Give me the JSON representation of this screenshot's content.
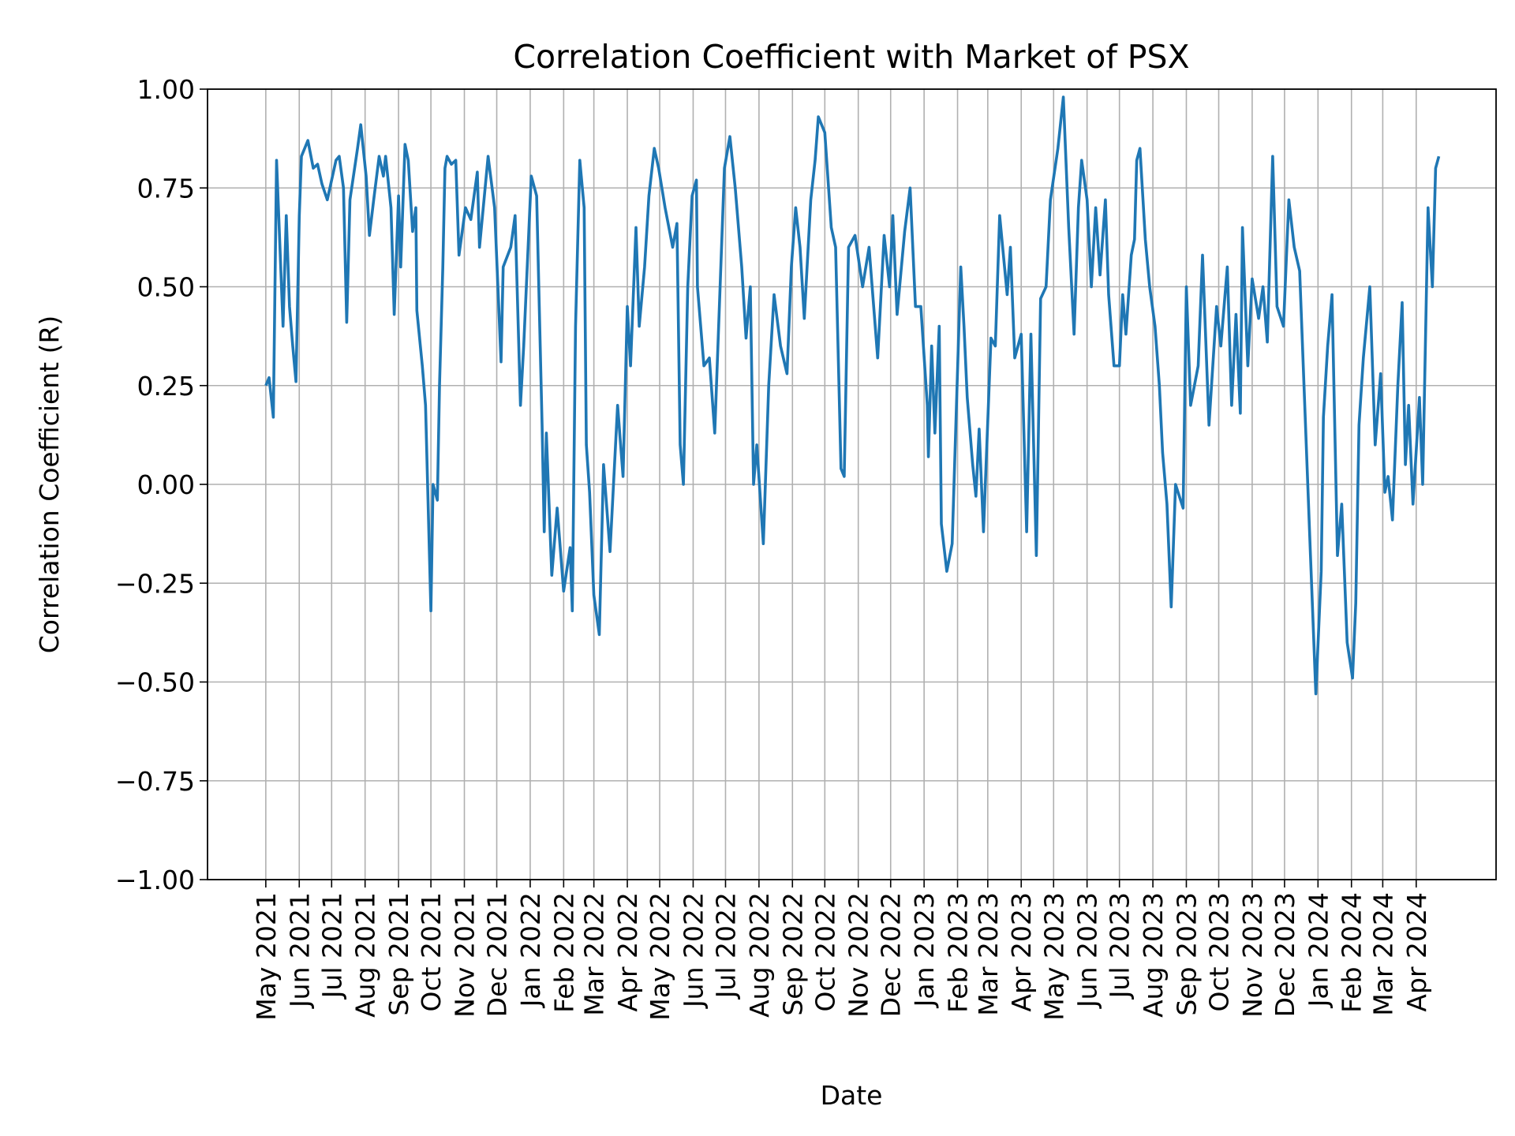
{
  "chart_data": {
    "type": "line",
    "title": "Correlation Coefficient with Market of PSX",
    "xlabel": "Date",
    "ylabel": "Correlation Coefficient (R)",
    "xlim": [
      "2021-03-08",
      "2024-06-14"
    ],
    "ylim": [
      -1.0,
      1.0
    ],
    "grid": true,
    "line_color": "#1f77b4",
    "yticks": [
      -1.0,
      -0.75,
      -0.5,
      -0.25,
      0.0,
      0.25,
      0.5,
      0.75,
      1.0
    ],
    "ytick_labels": [
      "−1.00",
      "−0.75",
      "−0.50",
      "−0.25",
      "0.00",
      "0.25",
      "0.50",
      "0.75",
      "1.00"
    ],
    "xticks": [
      "2021-05-01",
      "2021-06-01",
      "2021-07-01",
      "2021-08-01",
      "2021-09-01",
      "2021-10-01",
      "2021-11-01",
      "2021-12-01",
      "2022-01-01",
      "2022-02-01",
      "2022-03-01",
      "2022-04-01",
      "2022-05-01",
      "2022-06-01",
      "2022-07-01",
      "2022-08-01",
      "2022-09-01",
      "2022-10-01",
      "2022-11-01",
      "2022-12-01",
      "2023-01-01",
      "2023-02-01",
      "2023-03-01",
      "2023-04-01",
      "2023-05-01",
      "2023-06-01",
      "2023-07-01",
      "2023-08-01",
      "2023-09-01",
      "2023-10-01",
      "2023-11-01",
      "2023-12-01",
      "2024-01-01",
      "2024-02-01",
      "2024-03-01",
      "2024-04-01"
    ],
    "xtick_labels": [
      "May 2021",
      "Jun 2021",
      "Jul 2021",
      "Aug 2021",
      "Sep 2021",
      "Oct 2021",
      "Nov 2021",
      "Dec 2021",
      "Jan 2022",
      "Feb 2022",
      "Mar 2022",
      "Apr 2022",
      "May 2022",
      "Jun 2022",
      "Jul 2022",
      "Aug 2022",
      "Sep 2022",
      "Oct 2022",
      "Nov 2022",
      "Dec 2022",
      "Jan 2023",
      "Feb 2023",
      "Mar 2023",
      "Apr 2023",
      "May 2023",
      "Jun 2023",
      "Jul 2023",
      "Aug 2023",
      "Sep 2023",
      "Oct 2023",
      "Nov 2023",
      "Dec 2023",
      "Jan 2024",
      "Feb 2024",
      "Mar 2024",
      "Apr 2024"
    ],
    "points": [
      [
        "2021-05-01",
        0.25
      ],
      [
        "2021-05-04",
        0.27
      ],
      [
        "2021-05-08",
        0.17
      ],
      [
        "2021-05-11",
        0.82
      ],
      [
        "2021-05-17",
        0.4
      ],
      [
        "2021-05-20",
        0.68
      ],
      [
        "2021-05-23",
        0.45
      ],
      [
        "2021-05-26",
        0.35
      ],
      [
        "2021-05-29",
        0.26
      ],
      [
        "2021-06-01",
        0.68
      ],
      [
        "2021-06-03",
        0.83
      ],
      [
        "2021-06-09",
        0.87
      ],
      [
        "2021-06-14",
        0.8
      ],
      [
        "2021-06-18",
        0.81
      ],
      [
        "2021-06-22",
        0.76
      ],
      [
        "2021-06-27",
        0.72
      ],
      [
        "2021-07-05",
        0.82
      ],
      [
        "2021-07-08",
        0.83
      ],
      [
        "2021-07-12",
        0.75
      ],
      [
        "2021-07-15",
        0.41
      ],
      [
        "2021-07-18",
        0.72
      ],
      [
        "2021-07-25",
        0.85
      ],
      [
        "2021-07-28",
        0.91
      ],
      [
        "2021-08-02",
        0.78
      ],
      [
        "2021-08-05",
        0.63
      ],
      [
        "2021-08-09",
        0.72
      ],
      [
        "2021-08-14",
        0.83
      ],
      [
        "2021-08-18",
        0.78
      ],
      [
        "2021-08-20",
        0.83
      ],
      [
        "2021-08-25",
        0.7
      ],
      [
        "2021-08-28",
        0.43
      ],
      [
        "2021-09-01",
        0.73
      ],
      [
        "2021-09-03",
        0.55
      ],
      [
        "2021-09-07",
        0.86
      ],
      [
        "2021-09-10",
        0.82
      ],
      [
        "2021-09-14",
        0.64
      ],
      [
        "2021-09-17",
        0.7
      ],
      [
        "2021-09-18",
        0.44
      ],
      [
        "2021-09-23",
        0.3
      ],
      [
        "2021-09-26",
        0.2
      ],
      [
        "2021-10-01",
        -0.32
      ],
      [
        "2021-10-03",
        0.0
      ],
      [
        "2021-10-07",
        -0.04
      ],
      [
        "2021-10-09",
        0.25
      ],
      [
        "2021-10-12",
        0.55
      ],
      [
        "2021-10-14",
        0.8
      ],
      [
        "2021-10-16",
        0.83
      ],
      [
        "2021-10-20",
        0.81
      ],
      [
        "2021-10-24",
        0.82
      ],
      [
        "2021-10-27",
        0.58
      ],
      [
        "2021-11-02",
        0.7
      ],
      [
        "2021-11-07",
        0.67
      ],
      [
        "2021-11-13",
        0.79
      ],
      [
        "2021-11-15",
        0.6
      ],
      [
        "2021-11-23",
        0.83
      ],
      [
        "2021-11-29",
        0.7
      ],
      [
        "2021-12-05",
        0.31
      ],
      [
        "2021-12-07",
        0.55
      ],
      [
        "2021-12-14",
        0.6
      ],
      [
        "2021-12-18",
        0.68
      ],
      [
        "2021-12-23",
        0.2
      ],
      [
        "2021-12-26",
        0.35
      ],
      [
        "2022-01-02",
        0.78
      ],
      [
        "2022-01-07",
        0.73
      ],
      [
        "2022-01-12",
        0.15
      ],
      [
        "2022-01-14",
        -0.12
      ],
      [
        "2022-01-16",
        0.13
      ],
      [
        "2022-01-21",
        -0.23
      ],
      [
        "2022-01-26",
        -0.06
      ],
      [
        "2022-02-01",
        -0.27
      ],
      [
        "2022-02-07",
        -0.16
      ],
      [
        "2022-02-09",
        -0.32
      ],
      [
        "2022-02-12",
        0.4
      ],
      [
        "2022-02-16",
        0.82
      ],
      [
        "2022-02-20",
        0.7
      ],
      [
        "2022-02-22",
        0.1
      ],
      [
        "2022-02-25",
        -0.02
      ],
      [
        "2022-03-01",
        -0.28
      ],
      [
        "2022-03-06",
        -0.38
      ],
      [
        "2022-03-10",
        0.05
      ],
      [
        "2022-03-16",
        -0.17
      ],
      [
        "2022-03-23",
        0.2
      ],
      [
        "2022-03-28",
        0.02
      ],
      [
        "2022-04-01",
        0.45
      ],
      [
        "2022-04-04",
        0.3
      ],
      [
        "2022-04-09",
        0.65
      ],
      [
        "2022-04-12",
        0.4
      ],
      [
        "2022-04-17",
        0.55
      ],
      [
        "2022-04-21",
        0.73
      ],
      [
        "2022-04-26",
        0.85
      ],
      [
        "2022-04-30",
        0.8
      ],
      [
        "2022-05-06",
        0.7
      ],
      [
        "2022-05-13",
        0.6
      ],
      [
        "2022-05-17",
        0.66
      ],
      [
        "2022-05-20",
        0.1
      ],
      [
        "2022-05-23",
        0.0
      ],
      [
        "2022-05-27",
        0.5
      ],
      [
        "2022-05-31",
        0.73
      ],
      [
        "2022-06-04",
        0.77
      ],
      [
        "2022-06-05",
        0.5
      ],
      [
        "2022-06-11",
        0.3
      ],
      [
        "2022-06-16",
        0.32
      ],
      [
        "2022-06-21",
        0.13
      ],
      [
        "2022-06-26",
        0.5
      ],
      [
        "2022-06-30",
        0.8
      ],
      [
        "2022-07-05",
        0.88
      ],
      [
        "2022-07-10",
        0.75
      ],
      [
        "2022-07-16",
        0.55
      ],
      [
        "2022-07-20",
        0.37
      ],
      [
        "2022-07-24",
        0.5
      ],
      [
        "2022-07-27",
        0.0
      ],
      [
        "2022-07-30",
        0.1
      ],
      [
        "2022-08-05",
        -0.15
      ],
      [
        "2022-08-10",
        0.25
      ],
      [
        "2022-08-15",
        0.48
      ],
      [
        "2022-08-21",
        0.35
      ],
      [
        "2022-08-27",
        0.28
      ],
      [
        "2022-08-31",
        0.55
      ],
      [
        "2022-09-04",
        0.7
      ],
      [
        "2022-09-08",
        0.6
      ],
      [
        "2022-09-12",
        0.42
      ],
      [
        "2022-09-18",
        0.72
      ],
      [
        "2022-09-22",
        0.82
      ],
      [
        "2022-09-25",
        0.93
      ],
      [
        "2022-10-01",
        0.89
      ],
      [
        "2022-10-07",
        0.65
      ],
      [
        "2022-10-11",
        0.6
      ],
      [
        "2022-10-16",
        0.04
      ],
      [
        "2022-10-19",
        0.02
      ],
      [
        "2022-10-23",
        0.6
      ],
      [
        "2022-10-29",
        0.63
      ],
      [
        "2022-11-05",
        0.5
      ],
      [
        "2022-11-11",
        0.6
      ],
      [
        "2022-11-19",
        0.32
      ],
      [
        "2022-11-25",
        0.63
      ],
      [
        "2022-11-30",
        0.5
      ],
      [
        "2022-12-03",
        0.68
      ],
      [
        "2022-12-07",
        0.43
      ],
      [
        "2022-12-14",
        0.64
      ],
      [
        "2022-12-19",
        0.75
      ],
      [
        "2022-12-24",
        0.45
      ],
      [
        "2022-12-29",
        0.45
      ],
      [
        "2023-01-04",
        0.2
      ],
      [
        "2023-01-05",
        0.07
      ],
      [
        "2023-01-08",
        0.35
      ],
      [
        "2023-01-11",
        0.13
      ],
      [
        "2023-01-15",
        0.4
      ],
      [
        "2023-01-17",
        -0.1
      ],
      [
        "2023-01-22",
        -0.22
      ],
      [
        "2023-01-27",
        -0.15
      ],
      [
        "2023-02-04",
        0.55
      ],
      [
        "2023-02-07",
        0.4
      ],
      [
        "2023-02-10",
        0.22
      ],
      [
        "2023-02-15",
        0.05
      ],
      [
        "2023-02-18",
        -0.03
      ],
      [
        "2023-02-21",
        0.14
      ],
      [
        "2023-02-25",
        -0.12
      ],
      [
        "2023-03-04",
        0.37
      ],
      [
        "2023-03-08",
        0.35
      ],
      [
        "2023-03-12",
        0.68
      ],
      [
        "2023-03-19",
        0.48
      ],
      [
        "2023-03-22",
        0.6
      ],
      [
        "2023-03-26",
        0.32
      ],
      [
        "2023-04-01",
        0.38
      ],
      [
        "2023-04-06",
        -0.12
      ],
      [
        "2023-04-10",
        0.38
      ],
      [
        "2023-04-15",
        -0.18
      ],
      [
        "2023-04-19",
        0.47
      ],
      [
        "2023-04-24",
        0.5
      ],
      [
        "2023-04-28",
        0.72
      ],
      [
        "2023-05-05",
        0.85
      ],
      [
        "2023-05-10",
        0.98
      ],
      [
        "2023-05-15",
        0.65
      ],
      [
        "2023-05-20",
        0.38
      ],
      [
        "2023-05-24",
        0.7
      ],
      [
        "2023-05-27",
        0.82
      ],
      [
        "2023-06-01",
        0.72
      ],
      [
        "2023-06-05",
        0.5
      ],
      [
        "2023-06-09",
        0.7
      ],
      [
        "2023-06-13",
        0.53
      ],
      [
        "2023-06-18",
        0.72
      ],
      [
        "2023-06-21",
        0.48
      ],
      [
        "2023-06-26",
        0.3
      ],
      [
        "2023-07-01",
        0.3
      ],
      [
        "2023-07-04",
        0.48
      ],
      [
        "2023-07-07",
        0.38
      ],
      [
        "2023-07-12",
        0.58
      ],
      [
        "2023-07-15",
        0.62
      ],
      [
        "2023-07-17",
        0.82
      ],
      [
        "2023-07-20",
        0.85
      ],
      [
        "2023-07-25",
        0.62
      ],
      [
        "2023-07-29",
        0.5
      ],
      [
        "2023-08-03",
        0.4
      ],
      [
        "2023-08-07",
        0.25
      ],
      [
        "2023-08-10",
        0.08
      ],
      [
        "2023-08-14",
        -0.05
      ],
      [
        "2023-08-18",
        -0.31
      ],
      [
        "2023-08-22",
        0.0
      ],
      [
        "2023-08-29",
        -0.06
      ],
      [
        "2023-09-01",
        0.5
      ],
      [
        "2023-09-05",
        0.2
      ],
      [
        "2023-09-12",
        0.3
      ],
      [
        "2023-09-16",
        0.58
      ],
      [
        "2023-09-22",
        0.15
      ],
      [
        "2023-09-29",
        0.45
      ],
      [
        "2023-10-03",
        0.35
      ],
      [
        "2023-10-09",
        0.55
      ],
      [
        "2023-10-13",
        0.2
      ],
      [
        "2023-10-17",
        0.43
      ],
      [
        "2023-10-21",
        0.18
      ],
      [
        "2023-10-23",
        0.65
      ],
      [
        "2023-10-28",
        0.3
      ],
      [
        "2023-11-01",
        0.52
      ],
      [
        "2023-11-07",
        0.42
      ],
      [
        "2023-11-11",
        0.5
      ],
      [
        "2023-11-15",
        0.36
      ],
      [
        "2023-11-20",
        0.83
      ],
      [
        "2023-11-24",
        0.45
      ],
      [
        "2023-11-30",
        0.4
      ],
      [
        "2023-12-05",
        0.72
      ],
      [
        "2023-12-10",
        0.6
      ],
      [
        "2023-12-15",
        0.54
      ],
      [
        "2023-12-19",
        0.25
      ],
      [
        "2023-12-25",
        -0.18
      ],
      [
        "2023-12-30",
        -0.53
      ],
      [
        "2024-01-04",
        -0.22
      ],
      [
        "2024-01-06",
        0.17
      ],
      [
        "2024-01-10",
        0.35
      ],
      [
        "2024-01-14",
        0.48
      ],
      [
        "2024-01-19",
        -0.18
      ],
      [
        "2024-01-23",
        -0.05
      ],
      [
        "2024-01-28",
        -0.4
      ],
      [
        "2024-02-02",
        -0.49
      ],
      [
        "2024-02-05",
        -0.3
      ],
      [
        "2024-02-08",
        0.15
      ],
      [
        "2024-02-12",
        0.32
      ],
      [
        "2024-02-18",
        0.5
      ],
      [
        "2024-02-23",
        0.1
      ],
      [
        "2024-02-28",
        0.28
      ],
      [
        "2024-03-03",
        -0.02
      ],
      [
        "2024-03-06",
        0.02
      ],
      [
        "2024-03-10",
        -0.09
      ],
      [
        "2024-03-15",
        0.25
      ],
      [
        "2024-03-19",
        0.46
      ],
      [
        "2024-03-22",
        0.05
      ],
      [
        "2024-03-25",
        0.2
      ],
      [
        "2024-03-29",
        -0.05
      ],
      [
        "2024-04-04",
        0.22
      ],
      [
        "2024-04-07",
        0.0
      ],
      [
        "2024-04-12",
        0.7
      ],
      [
        "2024-04-16",
        0.5
      ],
      [
        "2024-04-19",
        0.8
      ],
      [
        "2024-04-22",
        0.83
      ]
    ]
  }
}
